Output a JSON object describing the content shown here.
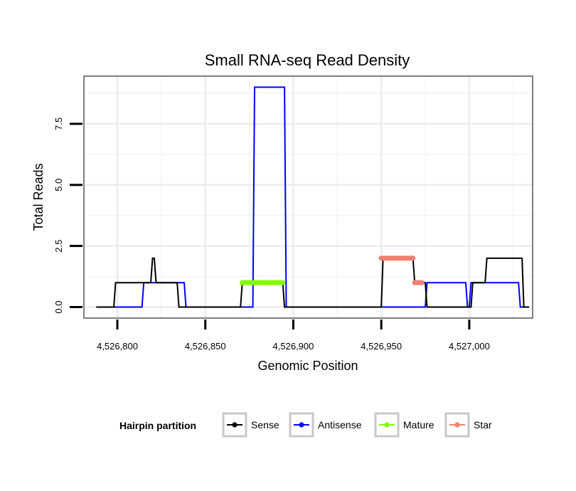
{
  "chart_data": {
    "type": "line",
    "title": "Small RNA-seq Read Density",
    "xlabel": "Genomic Position",
    "ylabel": "Total Reads",
    "xlim": [
      4526781,
      4527036
    ],
    "ylim": [
      -0.45,
      9.45
    ],
    "x_ticks": [
      4526800,
      4526850,
      4526900,
      4526950,
      4527000
    ],
    "x_tick_labels": [
      "4,526,800",
      "4,526,850",
      "4,526,900",
      "4,526,950",
      "4,527,000"
    ],
    "y_ticks": [
      0,
      2.5,
      5,
      7.5
    ],
    "y_tick_labels": [
      "0.0",
      "2.5",
      "5.0",
      "7.5"
    ],
    "grid": true,
    "legend": {
      "title": "Hairpin partition",
      "position": "bottom",
      "entries": [
        "Sense",
        "Antisense",
        "Mature",
        "Star"
      ]
    },
    "series": [
      {
        "name": "Sense",
        "color": "#000000",
        "style": "line",
        "x": [
          4526788,
          4526798,
          4526799,
          4526819,
          4526820,
          4526821,
          4526822,
          4526834,
          4526835,
          4526870,
          4526871,
          4526894,
          4526895,
          4526950,
          4526951,
          4526968,
          4526969,
          4526975,
          4526976,
          4527001,
          4527002,
          4527009,
          4527010,
          4527030,
          4527031,
          4527034
        ],
        "values": [
          0,
          0,
          1,
          1,
          2,
          2,
          1,
          1,
          0,
          0,
          1,
          1,
          0,
          0,
          2,
          2,
          1,
          1,
          0,
          0,
          1,
          1,
          2,
          2,
          0,
          0
        ]
      },
      {
        "name": "Antisense",
        "color": "#0000ff",
        "style": "line",
        "x": [
          4526788,
          4526814,
          4526815,
          4526838,
          4526839,
          4526877,
          4526878,
          4526895,
          4526896,
          4526975,
          4526976,
          4526998,
          4526999,
          4527000,
          4527001,
          4527028,
          4527029,
          4527034
        ],
        "values": [
          0,
          0,
          1,
          1,
          0,
          0,
          9,
          9,
          0,
          0,
          1,
          1,
          0,
          0,
          1,
          1,
          0,
          0
        ]
      },
      {
        "name": "Mature",
        "color": "#80ff00",
        "style": "points",
        "x": [
          4526871,
          4526872,
          4526873,
          4526874,
          4526875,
          4526876,
          4526877,
          4526878,
          4526879,
          4526880,
          4526881,
          4526882,
          4526883,
          4526884,
          4526885,
          4526886,
          4526887,
          4526888,
          4526889,
          4526890,
          4526891,
          4526892,
          4526893,
          4526894
        ],
        "values": [
          1,
          1,
          1,
          1,
          1,
          1,
          1,
          1,
          1,
          1,
          1,
          1,
          1,
          1,
          1,
          1,
          1,
          1,
          1,
          1,
          1,
          1,
          1,
          1
        ]
      },
      {
        "name": "Star",
        "color": "#f08070",
        "style": "points",
        "x": [
          4526950,
          4526951,
          4526952,
          4526953,
          4526954,
          4526955,
          4526956,
          4526957,
          4526958,
          4526959,
          4526960,
          4526961,
          4526962,
          4526963,
          4526964,
          4526965,
          4526966,
          4526967,
          4526968,
          4526969,
          4526970,
          4526971,
          4526972,
          4526973
        ],
        "values": [
          2,
          2,
          2,
          2,
          2,
          2,
          2,
          2,
          2,
          2,
          2,
          2,
          2,
          2,
          2,
          2,
          2,
          2,
          2,
          1,
          1,
          1,
          1,
          1
        ]
      }
    ]
  }
}
